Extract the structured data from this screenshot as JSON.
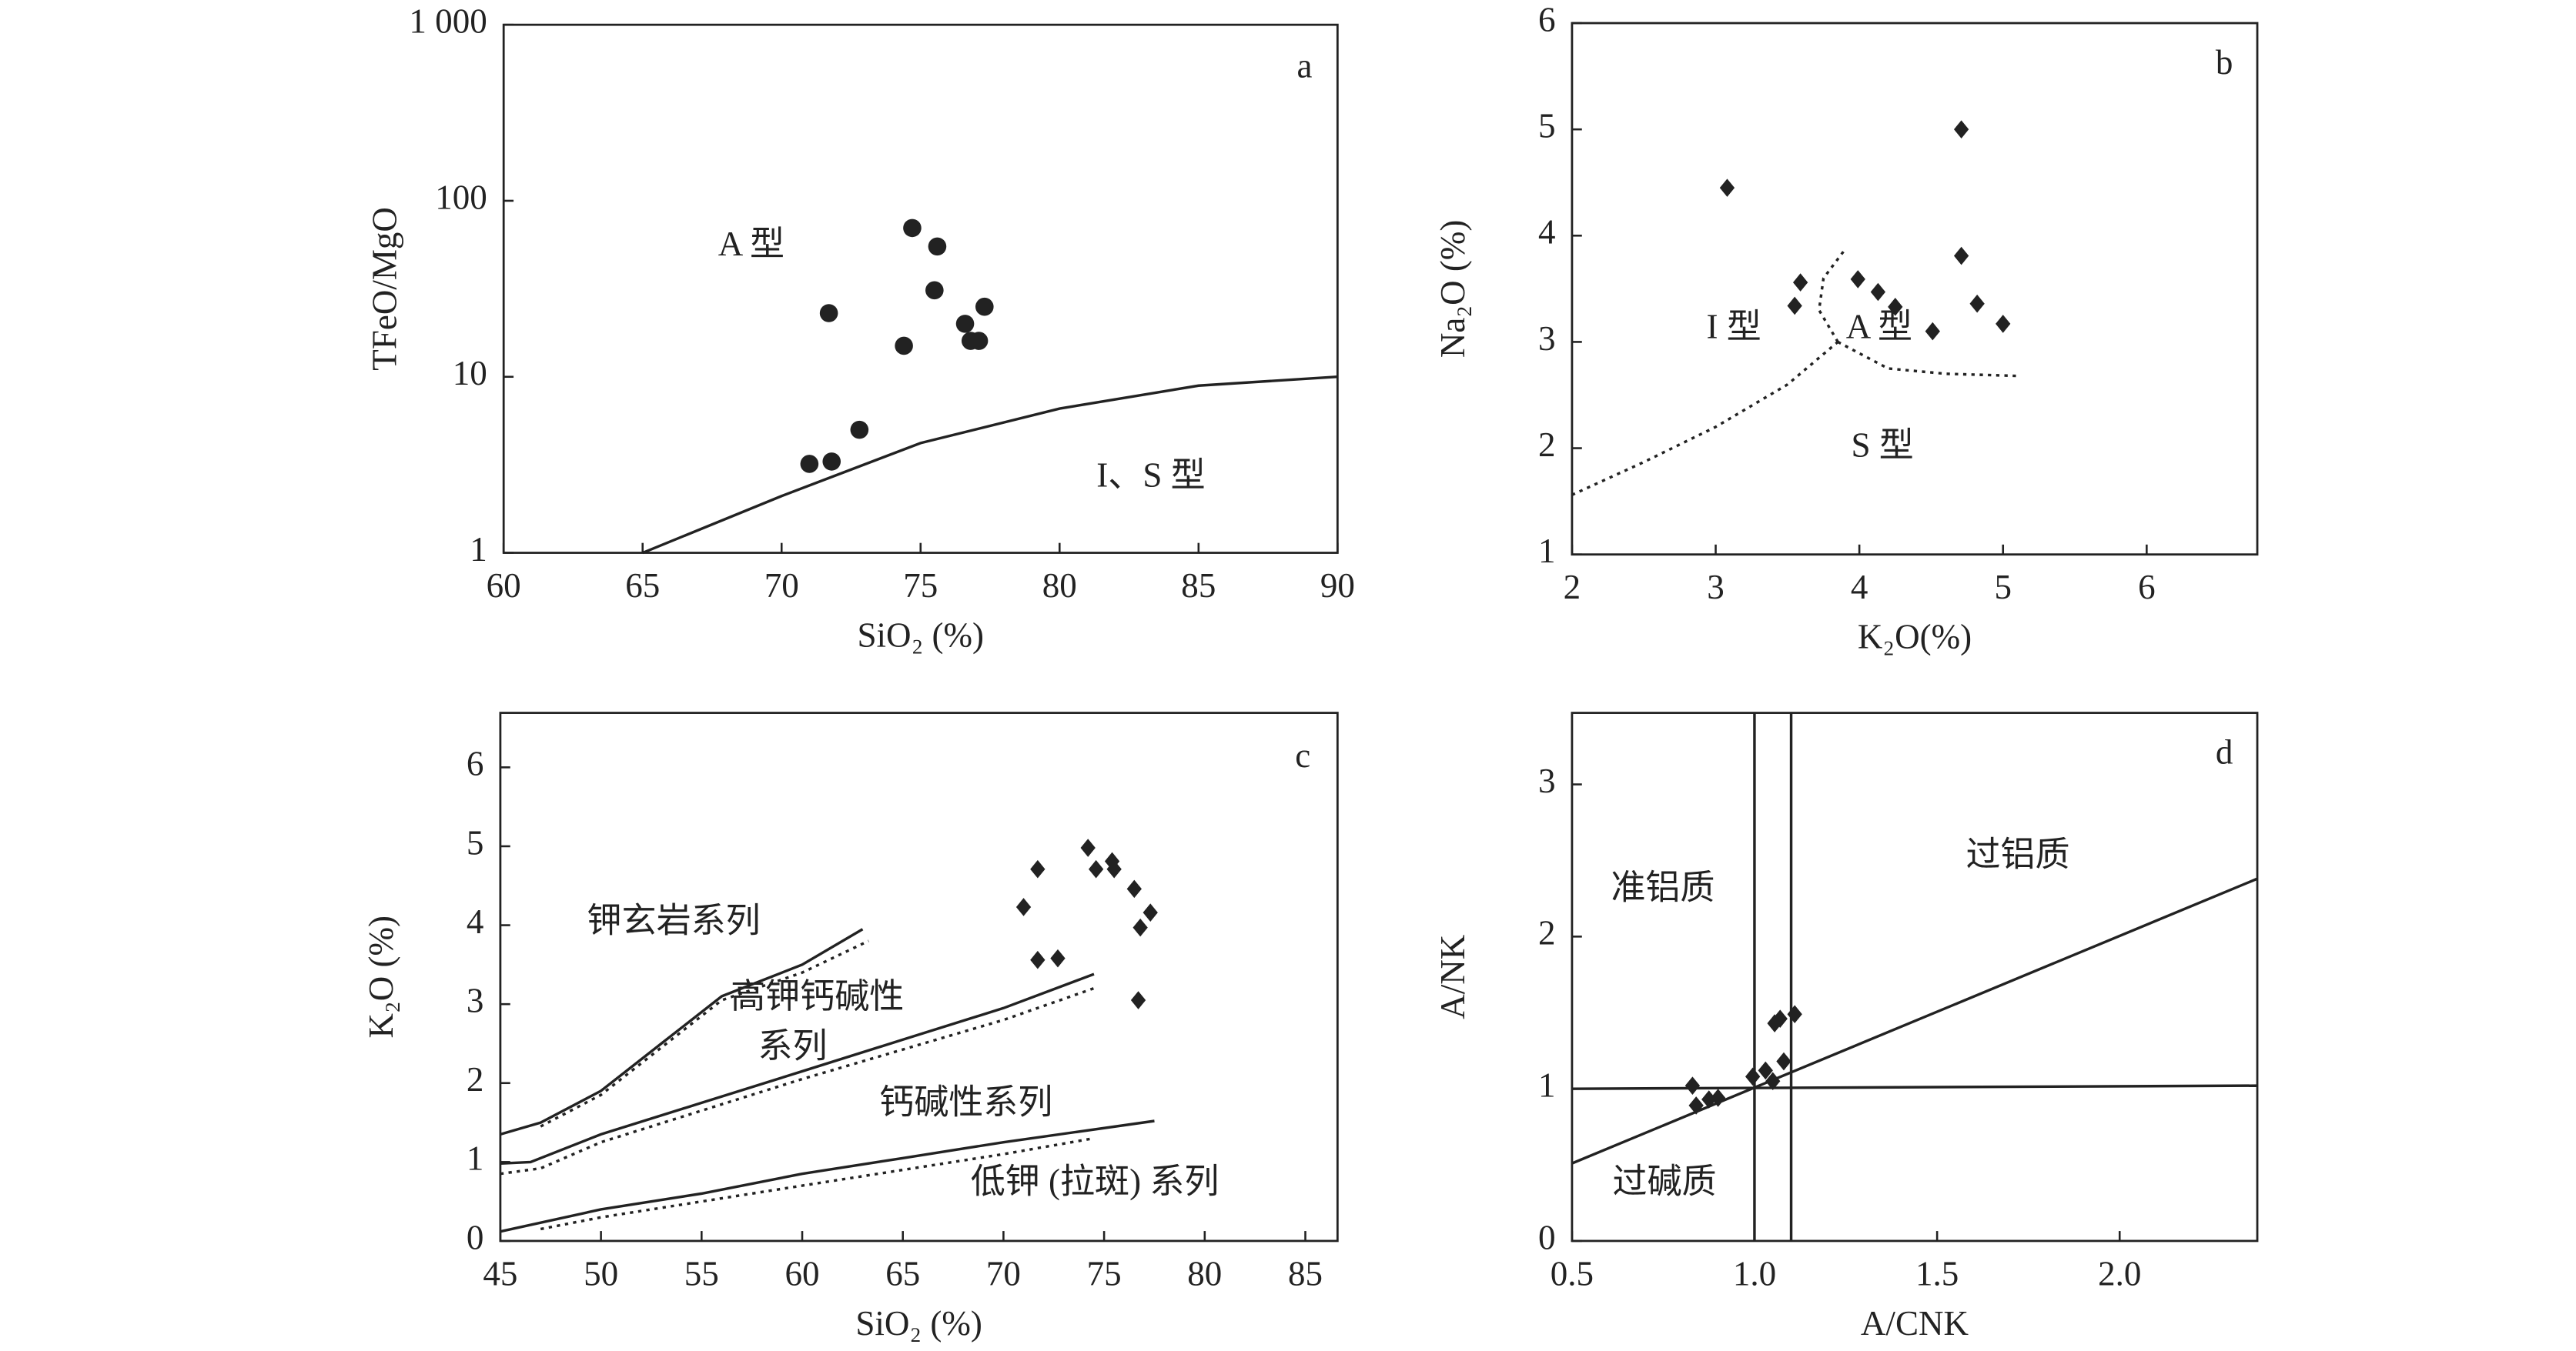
{
  "chart_data": [
    {
      "type": "scatter",
      "xlabel": "SiO₂ (%)",
      "ylabel": "TFeO/MgO",
      "log_y": true,
      "xlim": [
        60,
        90
      ],
      "ylim": [
        1,
        1000
      ],
      "xticks": [
        60,
        65,
        70,
        75,
        80,
        85,
        90
      ],
      "yticks": [
        1,
        10,
        100,
        {
          "value": 1000,
          "label": "1 000"
        }
      ],
      "x": [
        74.7,
        75.6,
        75.5,
        77.3,
        71.7,
        76.6,
        74.4,
        76.8,
        77.1,
        72.8,
        71.0,
        71.8
      ],
      "series": [
        {
          "color": "#222222",
          "marker": "circle",
          "values": [
            70,
            55,
            31,
            25,
            23,
            20,
            15,
            16,
            16,
            5,
            3.2,
            3.3
          ]
        }
      ],
      "lines": [
        {
          "style": "solid",
          "x": [
            65,
            70,
            75,
            80,
            85,
            90
          ],
          "y": [
            1,
            2.1,
            4.2,
            6.6,
            8.9,
            10
          ]
        }
      ],
      "annotations": [
        "a",
        "A 型",
        "I、S 型"
      ]
    },
    {
      "type": "scatter",
      "xlabel": "K₂O(%)",
      "ylabel": "Na₂O (%)",
      "xlim": [
        2,
        6.77
      ],
      "ylim": [
        1,
        6
      ],
      "xticks": [
        2,
        3,
        4,
        5,
        6
      ],
      "yticks": [
        1,
        2,
        3,
        4,
        5,
        6
      ],
      "x": [
        3.08,
        4.71,
        3.59,
        3.55,
        3.99,
        4.13,
        4.25,
        4.51,
        4.71,
        4.82,
        5.0
      ],
      "series": [
        {
          "color": "#222222",
          "marker": "diamond",
          "values": [
            4.45,
            5.0,
            3.56,
            3.34,
            3.59,
            3.47,
            3.33,
            3.1,
            3.81,
            3.36,
            3.17
          ]
        }
      ],
      "lines": [
        {
          "style": "dotted",
          "x": [
            2,
            2.5,
            3.0,
            3.5,
            3.85
          ],
          "y": [
            1.56,
            1.87,
            2.2,
            2.6,
            3.0
          ]
        },
        {
          "style": "dotted",
          "x": [
            3.85,
            3.72,
            3.75,
            3.9
          ],
          "y": [
            3.0,
            3.3,
            3.6,
            3.87
          ]
        },
        {
          "style": "dotted",
          "x": [
            3.85,
            4.2,
            4.6,
            5.1
          ],
          "y": [
            3.0,
            2.75,
            2.7,
            2.68
          ]
        }
      ],
      "annotations": [
        "b",
        "I 型",
        "A 型",
        "S 型"
      ]
    },
    {
      "type": "scatter",
      "xlabel": "SiO₂ (%)",
      "ylabel": "K₂O (%)",
      "xlim": [
        45,
        86.6
      ],
      "ylim": [
        0,
        6.69
      ],
      "xticks": [
        45,
        50,
        55,
        60,
        65,
        70,
        75,
        80,
        85
      ],
      "yticks": [
        0,
        1,
        2,
        3,
        4,
        5,
        6
      ],
      "x": [
        74.2,
        71.7,
        74.6,
        75.4,
        75.5,
        76.5,
        77.3,
        76.8,
        71.0,
        71.7,
        72.7,
        76.7
      ],
      "series": [
        {
          "color": "#222222",
          "marker": "diamond",
          "values": [
            4.98,
            4.71,
            4.71,
            4.81,
            4.71,
            4.46,
            4.16,
            3.97,
            4.23,
            3.56,
            3.58,
            3.05
          ]
        }
      ],
      "lines": [
        {
          "style": "solid",
          "x": [
            45,
            47,
            50,
            53,
            56,
            60,
            63
          ],
          "y": [
            1.35,
            1.5,
            1.9,
            2.5,
            3.1,
            3.5,
            3.95
          ]
        },
        {
          "style": "dotted",
          "x": [
            47,
            50,
            53,
            56,
            60,
            63.3
          ],
          "y": [
            1.45,
            1.85,
            2.45,
            3.05,
            3.4,
            3.8
          ]
        },
        {
          "style": "solid",
          "x": [
            45,
            46.5,
            50,
            55,
            60,
            65,
            70,
            74.5
          ],
          "y": [
            0.98,
            1.0,
            1.35,
            1.75,
            2.15,
            2.55,
            2.95,
            3.38
          ]
        },
        {
          "style": "dotted",
          "x": [
            45,
            47,
            50,
            60,
            70,
            74.5
          ],
          "y": [
            0.85,
            0.92,
            1.25,
            2.05,
            2.8,
            3.2
          ]
        },
        {
          "style": "solid",
          "x": [
            45,
            50,
            55,
            60,
            65,
            70,
            77.5
          ],
          "y": [
            0.12,
            0.4,
            0.6,
            0.85,
            1.05,
            1.25,
            1.52
          ]
        },
        {
          "style": "dotted",
          "x": [
            47,
            50,
            60,
            70,
            74.5
          ],
          "y": [
            0.15,
            0.3,
            0.7,
            1.1,
            1.3
          ]
        }
      ],
      "annotations": [
        "c",
        "钾玄岩系列",
        "高钾钙碱性",
        "系列",
        "钙碱性系列",
        "低钾 (拉斑) 系列"
      ]
    },
    {
      "type": "scatter",
      "xlabel": "A/CNK",
      "ylabel": "A/NK",
      "xlim": [
        0.5,
        2.377
      ],
      "ylim": [
        0,
        3.47
      ],
      "xticks": [
        0.5,
        {
          "value": 1,
          "label": "1.0"
        },
        1.5,
        {
          "value": 2,
          "label": "2.0"
        }
      ],
      "yticks": [
        0,
        1,
        2,
        3
      ],
      "x": [
        0.83,
        0.84,
        0.875,
        0.9,
        0.995,
        1.03,
        1.05,
        1.055,
        1.07,
        1.11,
        1.08
      ],
      "series": [
        {
          "color": "#222222",
          "marker": "diamond",
          "values": [
            1.02,
            0.89,
            0.93,
            0.94,
            1.08,
            1.12,
            1.05,
            1.43,
            1.46,
            1.49,
            1.18
          ]
        }
      ],
      "lines": [
        {
          "style": "solid",
          "x": [
            1.0,
            1.0
          ],
          "y": [
            0,
            3.47
          ]
        },
        {
          "style": "solid",
          "x": [
            1.1,
            1.1
          ],
          "y": [
            0,
            3.47
          ]
        },
        {
          "style": "solid",
          "x": [
            0.5,
            2.377
          ],
          "y": [
            1.0,
            1.02
          ]
        },
        {
          "style": "solid",
          "x": [
            0.5,
            2.377
          ],
          "y": [
            0.51,
            2.38
          ]
        }
      ],
      "annotations": [
        "d",
        "准铝质",
        "过铝质",
        "过碱质"
      ]
    }
  ]
}
